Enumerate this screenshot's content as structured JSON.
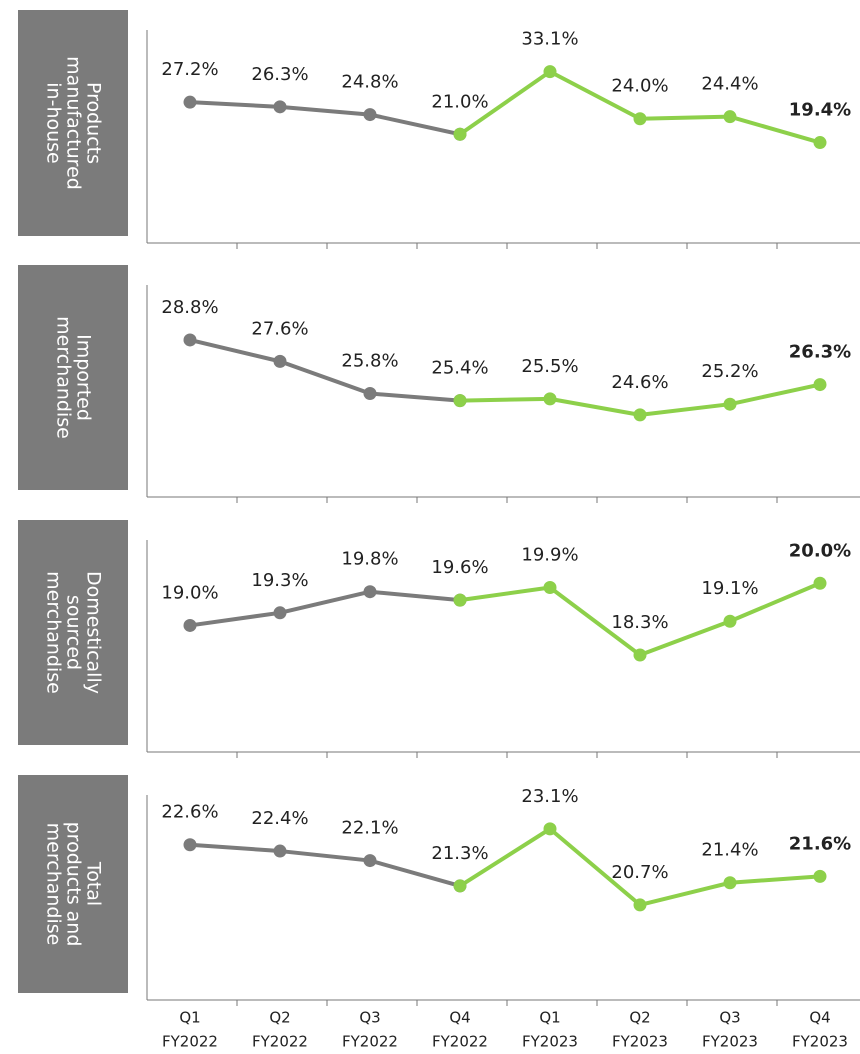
{
  "chart_data": [
    {
      "type": "line",
      "label": [
        "Products",
        "manufactured",
        "in-house"
      ],
      "ylim": [
        0,
        45
      ],
      "series": [
        {
          "color": "#7b7b7b",
          "values": [
            27.2,
            26.3,
            24.8,
            21.0,
            null,
            null,
            null,
            null
          ],
          "value_labels": [
            "27.2%",
            "26.3%",
            "24.8%",
            "21.0%",
            null,
            null,
            null,
            null
          ]
        },
        {
          "color": "#8dd04a",
          "values": [
            null,
            null,
            null,
            21.0,
            33.1,
            24.0,
            24.4,
            19.4
          ],
          "value_labels": [
            null,
            null,
            null,
            null,
            "33.1%",
            "24.0%",
            "24.4%",
            "19.4%"
          ]
        }
      ]
    },
    {
      "type": "line",
      "label": [
        "Imported",
        "merchandise"
      ],
      "ylim": [
        20,
        33
      ],
      "series": [
        {
          "color": "#7b7b7b",
          "values": [
            28.8,
            27.6,
            25.8,
            25.4,
            null,
            null,
            null,
            null
          ],
          "value_labels": [
            "28.8%",
            "27.6%",
            "25.8%",
            "25.4%",
            null,
            null,
            null,
            null
          ]
        },
        {
          "color": "#8dd04a",
          "values": [
            null,
            null,
            null,
            25.4,
            25.5,
            24.6,
            25.2,
            26.3
          ],
          "value_labels": [
            null,
            null,
            null,
            null,
            "25.5%",
            "24.6%",
            "25.2%",
            "26.3%"
          ]
        }
      ]
    },
    {
      "type": "line",
      "label": [
        "Domestically",
        "sourced",
        "merchandise"
      ],
      "ylim": [
        16,
        21.5
      ],
      "series": [
        {
          "color": "#7b7b7b",
          "values": [
            19.0,
            19.3,
            19.8,
            19.6,
            null,
            null,
            null,
            null
          ],
          "value_labels": [
            "19.0%",
            "19.3%",
            "19.8%",
            "19.6%",
            null,
            null,
            null,
            null
          ]
        },
        {
          "color": "#8dd04a",
          "values": [
            null,
            null,
            null,
            19.6,
            19.9,
            18.3,
            19.1,
            20.0
          ],
          "value_labels": [
            null,
            null,
            null,
            null,
            "19.9%",
            "18.3%",
            "19.1%",
            "20.0%"
          ]
        }
      ]
    },
    {
      "type": "line",
      "label": [
        "Total",
        "products and",
        "merchandise"
      ],
      "ylim": [
        17.7,
        24.8
      ],
      "categories": [
        [
          "Q1",
          "FY2022"
        ],
        [
          "Q2",
          "FY2022"
        ],
        [
          "Q3",
          "FY2022"
        ],
        [
          "Q4",
          "FY2022"
        ],
        [
          "Q1",
          "FY2023"
        ],
        [
          "Q2",
          "FY2023"
        ],
        [
          "Q3",
          "FY2023"
        ],
        [
          "Q4",
          "FY2023"
        ]
      ],
      "series": [
        {
          "color": "#7b7b7b",
          "values": [
            22.6,
            22.4,
            22.1,
            21.3,
            null,
            null,
            null,
            null
          ],
          "value_labels": [
            "22.6%",
            "22.4%",
            "22.1%",
            "21.3%",
            null,
            null,
            null,
            null
          ]
        },
        {
          "color": "#8dd04a",
          "values": [
            null,
            null,
            null,
            21.3,
            23.1,
            20.7,
            21.4,
            21.6
          ],
          "value_labels": [
            null,
            null,
            null,
            null,
            "23.1%",
            "20.7%",
            "21.4%",
            "21.6%"
          ]
        }
      ]
    }
  ]
}
